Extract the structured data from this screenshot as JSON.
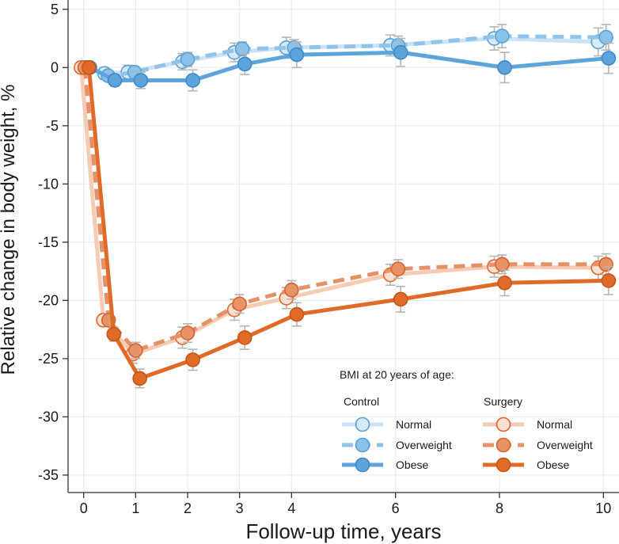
{
  "chart_data": {
    "type": "line",
    "xlabel": "Follow-up time, years",
    "ylabel": "Relative change in body weight, %",
    "xlim": [
      -0.3,
      10.3
    ],
    "ylim": [
      -36.5,
      5.8
    ],
    "xticks": [
      0,
      1,
      2,
      3,
      4,
      6,
      8,
      10
    ],
    "yticks": [
      5,
      0,
      -5,
      -10,
      -15,
      -20,
      -25,
      -30,
      -35
    ],
    "grid": true,
    "legend": {
      "title": "BMI at 20 years of age:",
      "group_labels": [
        "Control",
        "Surgery"
      ],
      "placement": "bottom-right"
    },
    "series": [
      {
        "name": "Normal",
        "group": "Control",
        "style": "solid-light",
        "color": "#c9e2f5",
        "fill": "#d6eaf8",
        "stroke": "#5aa0d8",
        "x": [
          0,
          0.4,
          0.85,
          1.9,
          2.9,
          3.9,
          5.9,
          7.9,
          9.9
        ],
        "y": [
          0,
          -0.5,
          -0.4,
          0.5,
          1.3,
          1.7,
          1.9,
          2.5,
          2.2
        ],
        "err": [
          0.3,
          0.5,
          0.6,
          0.7,
          0.8,
          0.9,
          0.9,
          1.0,
          1.2
        ]
      },
      {
        "name": "Overweight",
        "group": "Control",
        "style": "dashed",
        "color": "#8fc3ea",
        "fill": "#8cc1e8",
        "stroke": "#5aa0d8",
        "x": [
          0.07,
          0.47,
          0.98,
          2.0,
          3.05,
          4.05,
          6.05,
          8.05,
          10.05
        ],
        "y": [
          0,
          -0.7,
          -0.4,
          0.7,
          1.6,
          1.7,
          1.9,
          2.7,
          2.6
        ],
        "err": [
          0.3,
          0.4,
          0.5,
          0.6,
          0.6,
          0.7,
          0.8,
          1.0,
          1.1
        ]
      },
      {
        "name": "Obese",
        "group": "Control",
        "style": "solid",
        "color": "#5ea4dc",
        "fill": "#5ea4dc",
        "stroke": "#3d88c8",
        "x": [
          0.12,
          0.6,
          1.1,
          2.1,
          3.1,
          4.1,
          6.1,
          8.1,
          10.1
        ],
        "y": [
          0,
          -1.1,
          -1.1,
          -1.1,
          0.3,
          1.1,
          1.3,
          0.0,
          0.8
        ],
        "err": [
          0.3,
          0.5,
          0.7,
          0.9,
          0.9,
          1.1,
          1.2,
          1.3,
          1.3
        ]
      },
      {
        "name": "Normal",
        "group": "Surgery",
        "style": "solid-light",
        "color": "#f5cbb4",
        "fill": "#fbdfd1",
        "stroke": "#e0662a",
        "x": [
          -0.05,
          0.38,
          0.95,
          1.9,
          2.9,
          3.9,
          5.9,
          7.9,
          9.9
        ],
        "y": [
          0,
          -21.7,
          -24.6,
          -23.2,
          -20.8,
          -19.8,
          -17.8,
          -17.1,
          -17.2
        ],
        "err": [
          0.3,
          0.5,
          0.8,
          0.9,
          0.9,
          0.9,
          0.9,
          0.9,
          1.0
        ]
      },
      {
        "name": "Overweight",
        "group": "Surgery",
        "style": "dashed",
        "color": "#e49068",
        "fill": "#e8926a",
        "stroke": "#d4642c",
        "x": [
          0.02,
          0.48,
          1.0,
          2.0,
          3.0,
          4.0,
          6.05,
          8.05,
          10.05
        ],
        "y": [
          0,
          -21.7,
          -24.3,
          -22.8,
          -20.3,
          -19.1,
          -17.3,
          -16.9,
          -16.9
        ],
        "err": [
          0.3,
          0.5,
          0.7,
          0.8,
          0.8,
          0.8,
          0.8,
          0.8,
          0.9
        ]
      },
      {
        "name": "Obese",
        "group": "Surgery",
        "style": "solid",
        "color": "#e06a28",
        "fill": "#e06a28",
        "stroke": "#c4561a",
        "x": [
          0.1,
          0.58,
          1.08,
          2.1,
          3.1,
          4.1,
          6.1,
          8.1,
          10.1
        ],
        "y": [
          0,
          -22.9,
          -26.7,
          -25.1,
          -23.2,
          -21.2,
          -19.9,
          -18.5,
          -18.3
        ],
        "err": [
          0.3,
          0.6,
          0.8,
          0.9,
          1.0,
          1.0,
          1.1,
          1.1,
          1.2
        ]
      }
    ]
  }
}
